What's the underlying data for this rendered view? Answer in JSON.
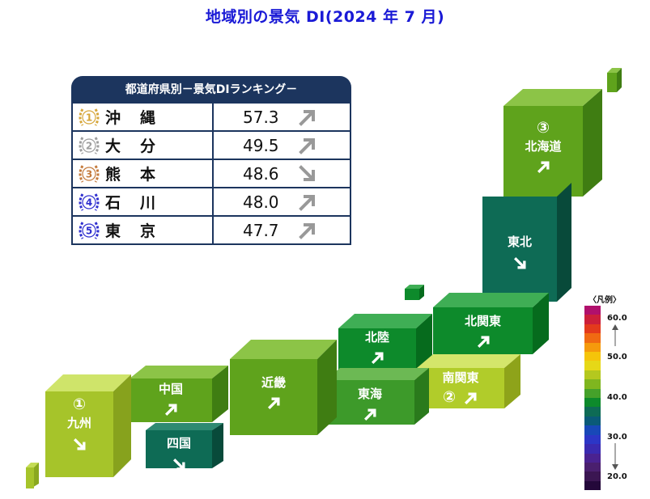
{
  "title": "地域別の景気 DI(2024 年 7 月)",
  "ranking": {
    "header": "都道府県別－景気DIランキング－",
    "rows": [
      {
        "rank": "1",
        "pref": "沖縄",
        "value": "57.3",
        "trend": "up",
        "medal_color": "#d6a63a"
      },
      {
        "rank": "2",
        "pref": "大分",
        "value": "49.5",
        "trend": "up",
        "medal_color": "#9e9e9e"
      },
      {
        "rank": "3",
        "pref": "熊本",
        "value": "48.6",
        "trend": "down",
        "medal_color": "#c47a3c"
      },
      {
        "rank": "4",
        "pref": "石川",
        "value": "48.0",
        "trend": "up",
        "medal_color": "#2e2ecf"
      },
      {
        "rank": "5",
        "pref": "東京",
        "value": "47.7",
        "trend": "up",
        "medal_color": "#2e2ecf"
      }
    ]
  },
  "regions": [
    {
      "name": "北海道",
      "rank_mark": "③",
      "trend": "up",
      "color": "#5fa31c"
    },
    {
      "name": "東北",
      "rank_mark": "",
      "trend": "down",
      "color": "#0e6b55"
    },
    {
      "name": "北関東",
      "rank_mark": "",
      "trend": "up",
      "color": "#0d8a2b"
    },
    {
      "name": "南関東",
      "rank_mark": "②",
      "trend": "up",
      "color": "#b1cc2a"
    },
    {
      "name": "北陸",
      "rank_mark": "",
      "trend": "up",
      "color": "#0d8a2b"
    },
    {
      "name": "東海",
      "rank_mark": "",
      "trend": "up",
      "color": "#3d9a2a"
    },
    {
      "name": "近畿",
      "rank_mark": "",
      "trend": "up",
      "color": "#5fa31c"
    },
    {
      "name": "中国",
      "rank_mark": "",
      "trend": "up",
      "color": "#5fa31c"
    },
    {
      "name": "四国",
      "rank_mark": "",
      "trend": "down",
      "color": "#0e6b55"
    },
    {
      "name": "九州",
      "rank_mark": "①",
      "trend": "down",
      "color": "#a6c42a"
    }
  ],
  "legend": {
    "title": "〈凡例〉",
    "ticks": [
      "60.0",
      "50.0",
      "40.0",
      "30.0",
      "20.0"
    ],
    "colors": [
      "#b0106c",
      "#cc1f3a",
      "#e33a1c",
      "#f06a12",
      "#f59a0c",
      "#f5c40a",
      "#e6d817",
      "#b4c81f",
      "#7fb61f",
      "#45a12a",
      "#0d8a2b",
      "#0e6b55",
      "#0a5a78",
      "#1848b8",
      "#2c36c6",
      "#3a2ab0",
      "#4a2290",
      "#4a1f6e",
      "#3b1652",
      "#24083a"
    ]
  }
}
